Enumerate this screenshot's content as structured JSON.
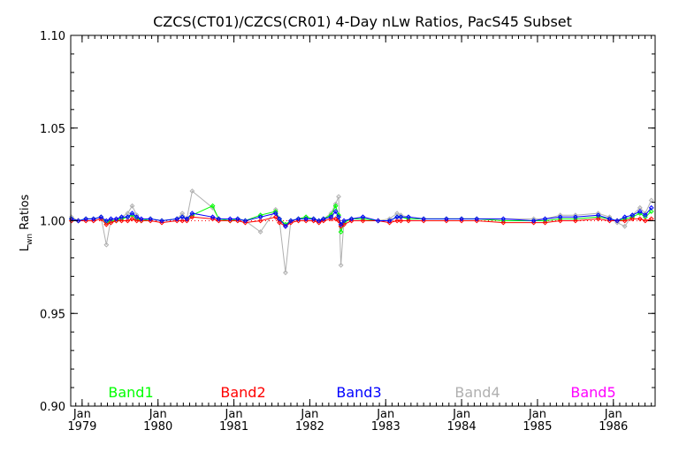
{
  "chart_data": {
    "type": "line",
    "title": "CZCS(CT01)/CZCS(CR01) 4-Day nLw Ratios, PacS45 Subset",
    "ylabel_main": "L",
    "ylabel_sub": "wn",
    "ylabel_rest": " Ratios",
    "ylim": [
      0.9,
      1.1
    ],
    "xlim": [
      1978.85,
      1986.55
    ],
    "y_ticks": [
      "0.90",
      "0.95",
      "1.00",
      "1.05",
      "1.10"
    ],
    "y_tick_values": [
      0.9,
      0.95,
      1.0,
      1.05,
      1.1
    ],
    "x_ticks": [
      {
        "month": "Jan",
        "year": "1979",
        "value": 1979.0
      },
      {
        "month": "Jan",
        "year": "1980",
        "value": 1980.0
      },
      {
        "month": "Jan",
        "year": "1981",
        "value": 1981.0
      },
      {
        "month": "Jan",
        "year": "1982",
        "value": 1982.0
      },
      {
        "month": "Jan",
        "year": "1983",
        "value": 1983.0
      },
      {
        "month": "Jan",
        "year": "1984",
        "value": 1984.0
      },
      {
        "month": "Jan",
        "year": "1985",
        "value": 1985.0
      },
      {
        "month": "Jan",
        "year": "1986",
        "value": 1986.0
      }
    ],
    "reference_line": 1.0,
    "grid": false,
    "legend_position": "bottom",
    "legend": [
      {
        "label": "Band1",
        "color": "#00ff00"
      },
      {
        "label": "Band2",
        "color": "#ff0000"
      },
      {
        "label": "Band3",
        "color": "#0000ff"
      },
      {
        "label": "Band4",
        "color": "#b0b0b0"
      },
      {
        "label": "Band5",
        "color": "#ff00ff"
      }
    ],
    "series": [
      {
        "label": "Band4",
        "color": "#b0b0b0",
        "points": [
          [
            1978.86,
            1.002
          ],
          [
            1978.95,
            1.0
          ],
          [
            1979.05,
            1.001
          ],
          [
            1979.15,
            1.001
          ],
          [
            1979.25,
            1.002
          ],
          [
            1979.32,
            0.987
          ],
          [
            1979.38,
            1.001
          ],
          [
            1979.45,
            1.0
          ],
          [
            1979.52,
            1.002
          ],
          [
            1979.6,
            1.004
          ],
          [
            1979.66,
            1.008
          ],
          [
            1979.72,
            1.003
          ],
          [
            1979.78,
            1.0
          ],
          [
            1979.9,
            1.001
          ],
          [
            1980.05,
            1.0
          ],
          [
            1980.25,
            1.001
          ],
          [
            1980.32,
            1.004
          ],
          [
            1980.38,
            1.001
          ],
          [
            1980.45,
            1.016
          ],
          [
            1980.72,
            1.007
          ],
          [
            1980.8,
            1.001
          ],
          [
            1980.95,
            1.0
          ],
          [
            1981.05,
            1.001
          ],
          [
            1981.15,
            1.0
          ],
          [
            1981.35,
            0.994
          ],
          [
            1981.55,
            1.006
          ],
          [
            1981.6,
            1.0
          ],
          [
            1981.68,
            0.972
          ],
          [
            1981.75,
            1.0
          ],
          [
            1981.85,
            1.001
          ],
          [
            1981.95,
            1.002
          ],
          [
            1982.05,
            1.001
          ],
          [
            1982.12,
            1.0
          ],
          [
            1982.18,
            1.001
          ],
          [
            1982.28,
            1.004
          ],
          [
            1982.34,
            1.009
          ],
          [
            1982.38,
            1.013
          ],
          [
            1982.41,
            0.976
          ],
          [
            1982.45,
            1.0
          ],
          [
            1982.55,
            1.001
          ],
          [
            1982.7,
            1.002
          ],
          [
            1982.9,
            1.0
          ],
          [
            1983.05,
            1.001
          ],
          [
            1983.15,
            1.004
          ],
          [
            1983.2,
            1.003
          ],
          [
            1983.3,
            1.002
          ],
          [
            1983.5,
            1.001
          ],
          [
            1983.8,
            1.001
          ],
          [
            1984.0,
            1.001
          ],
          [
            1984.2,
            1.001
          ],
          [
            1984.55,
            1.001
          ],
          [
            1984.95,
            1.001
          ],
          [
            1985.1,
            1.001
          ],
          [
            1985.3,
            1.003
          ],
          [
            1985.5,
            1.003
          ],
          [
            1985.8,
            1.004
          ],
          [
            1985.95,
            1.002
          ],
          [
            1986.05,
            0.999
          ],
          [
            1986.15,
            0.997
          ],
          [
            1986.25,
            1.003
          ],
          [
            1986.35,
            1.007
          ],
          [
            1986.42,
            1.004
          ],
          [
            1986.5,
            1.011
          ]
        ]
      },
      {
        "label": "Band1",
        "color": "#00ff00",
        "points": [
          [
            1978.86,
            1.001
          ],
          [
            1978.95,
            1.0
          ],
          [
            1979.05,
            1.001
          ],
          [
            1979.15,
            1.001
          ],
          [
            1979.25,
            1.002
          ],
          [
            1979.32,
            0.999
          ],
          [
            1979.38,
            1.0
          ],
          [
            1979.45,
            1.0
          ],
          [
            1979.52,
            1.001
          ],
          [
            1979.6,
            1.002
          ],
          [
            1979.66,
            1.003
          ],
          [
            1979.72,
            1.001
          ],
          [
            1979.78,
            1.0
          ],
          [
            1979.9,
            1.001
          ],
          [
            1980.05,
            1.0
          ],
          [
            1980.25,
            1.001
          ],
          [
            1980.32,
            1.002
          ],
          [
            1980.38,
            1.001
          ],
          [
            1980.45,
            1.003
          ],
          [
            1980.72,
            1.008
          ],
          [
            1980.8,
            1.001
          ],
          [
            1980.95,
            1.0
          ],
          [
            1981.05,
            1.001
          ],
          [
            1981.15,
            1.0
          ],
          [
            1981.35,
            1.003
          ],
          [
            1981.55,
            1.005
          ],
          [
            1981.6,
            1.001
          ],
          [
            1981.68,
            0.998
          ],
          [
            1981.75,
            1.0
          ],
          [
            1981.85,
            1.001
          ],
          [
            1981.95,
            1.002
          ],
          [
            1982.05,
            1.001
          ],
          [
            1982.12,
            1.0
          ],
          [
            1982.18,
            1.001
          ],
          [
            1982.28,
            1.003
          ],
          [
            1982.34,
            1.008
          ],
          [
            1982.38,
            1.003
          ],
          [
            1982.41,
            0.994
          ],
          [
            1982.45,
            0.999
          ],
          [
            1982.55,
            1.001
          ],
          [
            1982.7,
            1.001
          ],
          [
            1982.9,
            1.0
          ],
          [
            1983.05,
            1.0
          ],
          [
            1983.15,
            1.002
          ],
          [
            1983.2,
            1.002
          ],
          [
            1983.3,
            1.001
          ],
          [
            1983.5,
            1.001
          ],
          [
            1983.8,
            1.001
          ],
          [
            1984.0,
            1.001
          ],
          [
            1984.2,
            1.001
          ],
          [
            1984.55,
            1.0
          ],
          [
            1984.95,
            1.0
          ],
          [
            1985.1,
            1.0
          ],
          [
            1985.3,
            1.001
          ],
          [
            1985.5,
            1.001
          ],
          [
            1985.8,
            1.002
          ],
          [
            1985.95,
            1.001
          ],
          [
            1986.05,
            1.0
          ],
          [
            1986.15,
            1.001
          ],
          [
            1986.25,
            1.002
          ],
          [
            1986.35,
            1.004
          ],
          [
            1986.42,
            1.002
          ],
          [
            1986.5,
            1.005
          ]
        ]
      },
      {
        "label": "Band2",
        "color": "#ff0000",
        "points": [
          [
            1978.86,
            1.0
          ],
          [
            1978.95,
            1.0
          ],
          [
            1979.05,
            1.0
          ],
          [
            1979.15,
            1.0
          ],
          [
            1979.25,
            1.001
          ],
          [
            1979.32,
            0.998
          ],
          [
            1979.38,
            0.999
          ],
          [
            1979.45,
            1.0
          ],
          [
            1979.52,
            1.0
          ],
          [
            1979.6,
            1.0
          ],
          [
            1979.66,
            1.001
          ],
          [
            1979.72,
            1.0
          ],
          [
            1979.78,
            1.0
          ],
          [
            1979.9,
            1.0
          ],
          [
            1980.05,
            0.999
          ],
          [
            1980.25,
            1.0
          ],
          [
            1980.32,
            1.0
          ],
          [
            1980.38,
            1.0
          ],
          [
            1980.45,
            1.002
          ],
          [
            1980.72,
            1.001
          ],
          [
            1980.8,
            1.0
          ],
          [
            1980.95,
            1.0
          ],
          [
            1981.05,
            1.0
          ],
          [
            1981.15,
            0.999
          ],
          [
            1981.35,
            1.0
          ],
          [
            1981.55,
            1.002
          ],
          [
            1981.6,
            0.999
          ],
          [
            1981.68,
            0.997
          ],
          [
            1981.75,
            0.999
          ],
          [
            1981.85,
            1.0
          ],
          [
            1981.95,
            1.0
          ],
          [
            1982.05,
            1.0
          ],
          [
            1982.12,
            0.999
          ],
          [
            1982.18,
            1.0
          ],
          [
            1982.28,
            1.001
          ],
          [
            1982.34,
            1.001
          ],
          [
            1982.38,
            1.0
          ],
          [
            1982.41,
            0.997
          ],
          [
            1982.45,
            0.998
          ],
          [
            1982.55,
            1.0
          ],
          [
            1982.7,
            1.0
          ],
          [
            1982.9,
            1.0
          ],
          [
            1983.05,
            0.999
          ],
          [
            1983.15,
            1.0
          ],
          [
            1983.2,
            1.0
          ],
          [
            1983.3,
            1.0
          ],
          [
            1983.5,
            1.0
          ],
          [
            1983.8,
            1.0
          ],
          [
            1984.0,
            1.0
          ],
          [
            1984.2,
            1.0
          ],
          [
            1984.55,
            0.999
          ],
          [
            1984.95,
            0.999
          ],
          [
            1985.1,
            0.999
          ],
          [
            1985.3,
            1.0
          ],
          [
            1985.5,
            1.0
          ],
          [
            1985.8,
            1.001
          ],
          [
            1985.95,
            1.0
          ],
          [
            1986.05,
            1.0
          ],
          [
            1986.15,
            1.0
          ],
          [
            1986.25,
            1.001
          ],
          [
            1986.35,
            1.001
          ],
          [
            1986.42,
            1.0
          ],
          [
            1986.5,
            1.001
          ]
        ]
      },
      {
        "label": "Band3",
        "color": "#0000ff",
        "points": [
          [
            1978.86,
            1.001
          ],
          [
            1978.95,
            1.0
          ],
          [
            1979.05,
            1.001
          ],
          [
            1979.15,
            1.001
          ],
          [
            1979.25,
            1.002
          ],
          [
            1979.32,
            1.0
          ],
          [
            1979.38,
            1.001
          ],
          [
            1979.45,
            1.001
          ],
          [
            1979.52,
            1.002
          ],
          [
            1979.6,
            1.002
          ],
          [
            1979.66,
            1.004
          ],
          [
            1979.72,
            1.002
          ],
          [
            1979.78,
            1.001
          ],
          [
            1979.9,
            1.001
          ],
          [
            1980.05,
            1.0
          ],
          [
            1980.25,
            1.001
          ],
          [
            1980.32,
            1.002
          ],
          [
            1980.38,
            1.001
          ],
          [
            1980.45,
            1.004
          ],
          [
            1980.72,
            1.002
          ],
          [
            1980.8,
            1.001
          ],
          [
            1980.95,
            1.001
          ],
          [
            1981.05,
            1.001
          ],
          [
            1981.15,
            1.0
          ],
          [
            1981.35,
            1.002
          ],
          [
            1981.55,
            1.004
          ],
          [
            1981.6,
            1.001
          ],
          [
            1981.68,
            0.997
          ],
          [
            1981.75,
            1.0
          ],
          [
            1981.85,
            1.001
          ],
          [
            1981.95,
            1.001
          ],
          [
            1982.05,
            1.001
          ],
          [
            1982.12,
            1.0
          ],
          [
            1982.18,
            1.001
          ],
          [
            1982.28,
            1.002
          ],
          [
            1982.34,
            1.005
          ],
          [
            1982.38,
            1.002
          ],
          [
            1982.41,
            0.998
          ],
          [
            1982.45,
            1.0
          ],
          [
            1982.55,
            1.001
          ],
          [
            1982.7,
            1.002
          ],
          [
            1982.9,
            1.0
          ],
          [
            1983.05,
            1.0
          ],
          [
            1983.15,
            1.002
          ],
          [
            1983.2,
            1.002
          ],
          [
            1983.3,
            1.002
          ],
          [
            1983.5,
            1.001
          ],
          [
            1983.8,
            1.001
          ],
          [
            1984.0,
            1.001
          ],
          [
            1984.2,
            1.001
          ],
          [
            1984.55,
            1.001
          ],
          [
            1984.95,
            1.0
          ],
          [
            1985.1,
            1.001
          ],
          [
            1985.3,
            1.002
          ],
          [
            1985.5,
            1.002
          ],
          [
            1985.8,
            1.003
          ],
          [
            1985.95,
            1.001
          ],
          [
            1986.05,
            1.0
          ],
          [
            1986.15,
            1.002
          ],
          [
            1986.25,
            1.003
          ],
          [
            1986.35,
            1.005
          ],
          [
            1986.42,
            1.003
          ],
          [
            1986.5,
            1.007
          ]
        ]
      }
    ]
  }
}
